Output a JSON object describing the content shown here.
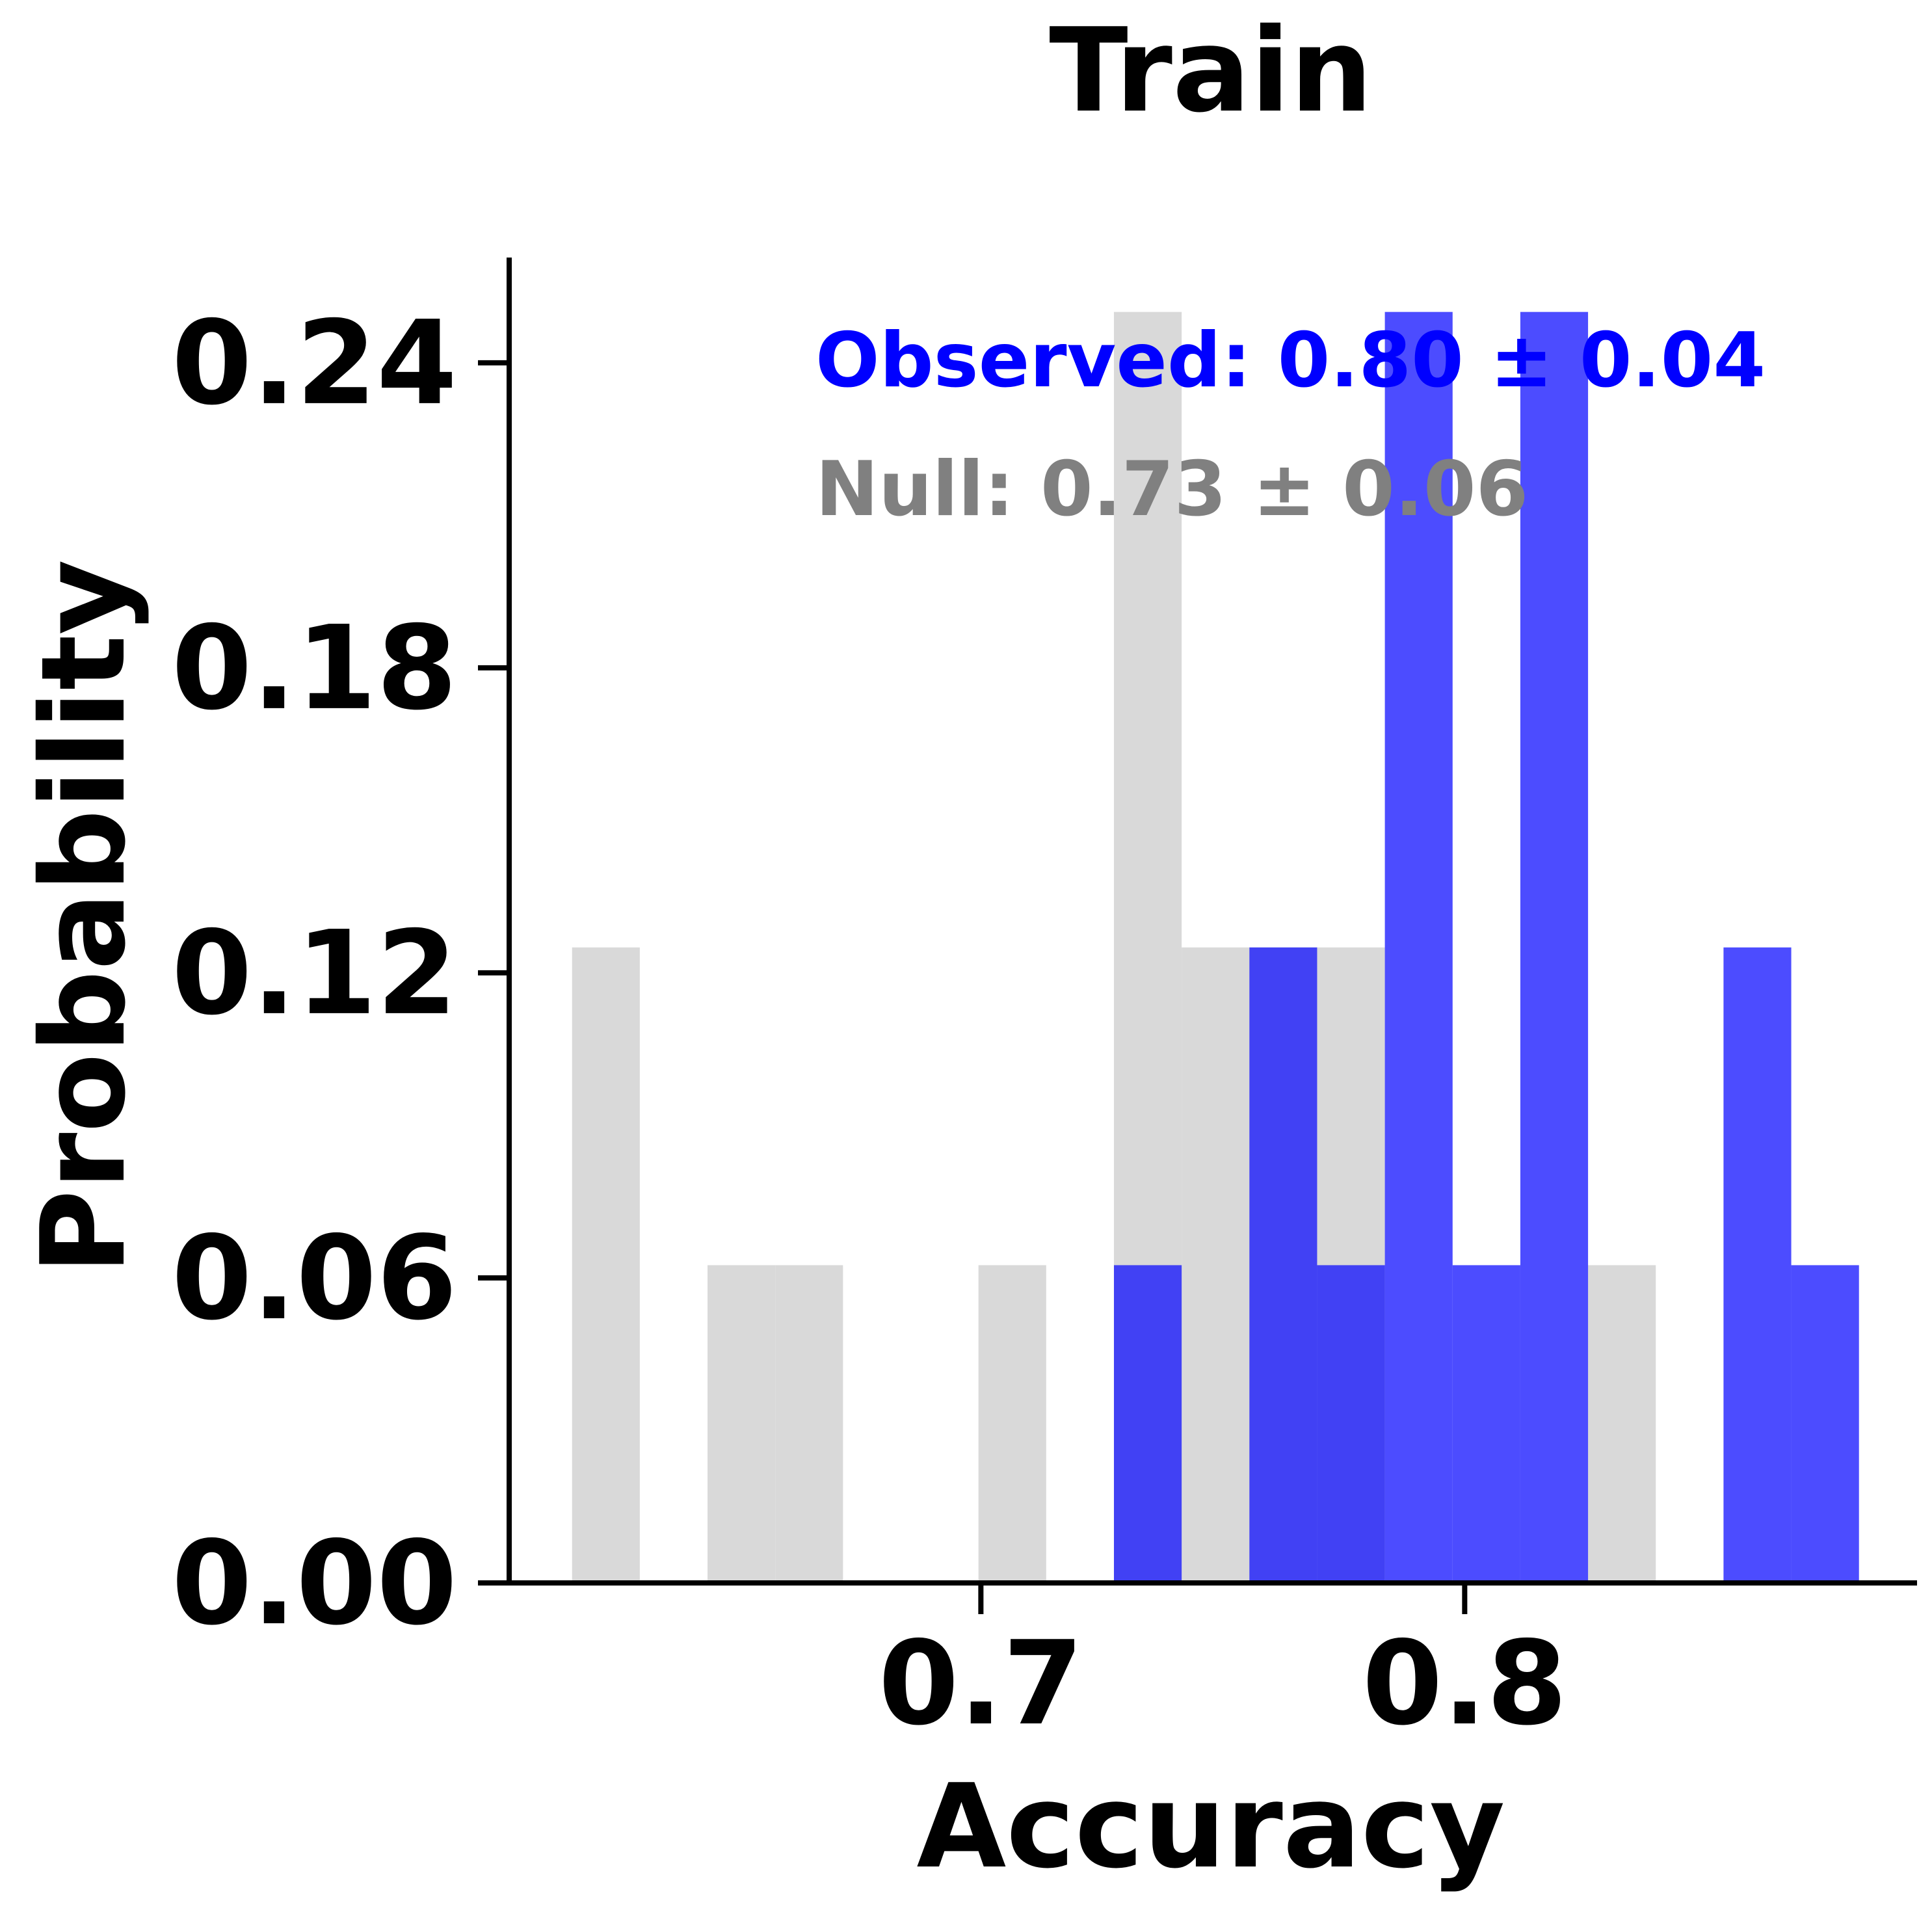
{
  "chart_data": {
    "type": "bar",
    "title": "Train",
    "xlabel": "Accuracy",
    "ylabel": "Probability",
    "xlim": [
      0.6025,
      0.8935
    ],
    "ylim": [
      0,
      0.2607
    ],
    "xticks": [
      0.7,
      0.8
    ],
    "xtick_labels": [
      "0.7",
      "0.8"
    ],
    "yticks": [
      0,
      0.06,
      0.12,
      0.18,
      0.24
    ],
    "ytick_labels": [
      "0.00",
      "0.06",
      "0.12",
      "0.18",
      "0.24"
    ],
    "grid": false,
    "annotations": [
      {
        "text": "Observed: 0.80 ± 0.04",
        "color": "#0000ff"
      },
      {
        "text": "Null: 0.73 ± 0.06",
        "color": "#808080"
      }
    ],
    "series": [
      {
        "color": "#d9d9d9",
        "bins": [
          {
            "x0": 0.6155,
            "x1": 0.6295,
            "value": 0.125
          },
          {
            "x0": 0.6435,
            "x1": 0.6575,
            "value": 0.0625
          },
          {
            "x0": 0.6575,
            "x1": 0.6715,
            "value": 0.0625
          },
          {
            "x0": 0.6995,
            "x1": 0.7135,
            "value": 0.0625
          },
          {
            "x0": 0.7275,
            "x1": 0.7415,
            "value": 0.25
          },
          {
            "x0": 0.7415,
            "x1": 0.7555,
            "value": 0.125
          },
          {
            "x0": 0.7555,
            "x1": 0.7695,
            "value": 0.125
          },
          {
            "x0": 0.7695,
            "x1": 0.7835,
            "value": 0.125
          },
          {
            "x0": 0.8255,
            "x1": 0.8395,
            "value": 0.0625
          }
        ]
      },
      {
        "color": "#0000ff",
        "opacity": 0.7,
        "bins": [
          {
            "x0": 0.7275,
            "x1": 0.7415,
            "value": 0.0625
          },
          {
            "x0": 0.7555,
            "x1": 0.7695,
            "value": 0.125
          },
          {
            "x0": 0.7695,
            "x1": 0.7835,
            "value": 0.0625
          },
          {
            "x0": 0.7835,
            "x1": 0.7975,
            "value": 0.25
          },
          {
            "x0": 0.7975,
            "x1": 0.8115,
            "value": 0.0625
          },
          {
            "x0": 0.8115,
            "x1": 0.8255,
            "value": 0.25
          },
          {
            "x0": 0.8535,
            "x1": 0.8675,
            "value": 0.125
          },
          {
            "x0": 0.8675,
            "x1": 0.8815,
            "value": 0.0625
          }
        ]
      }
    ]
  }
}
